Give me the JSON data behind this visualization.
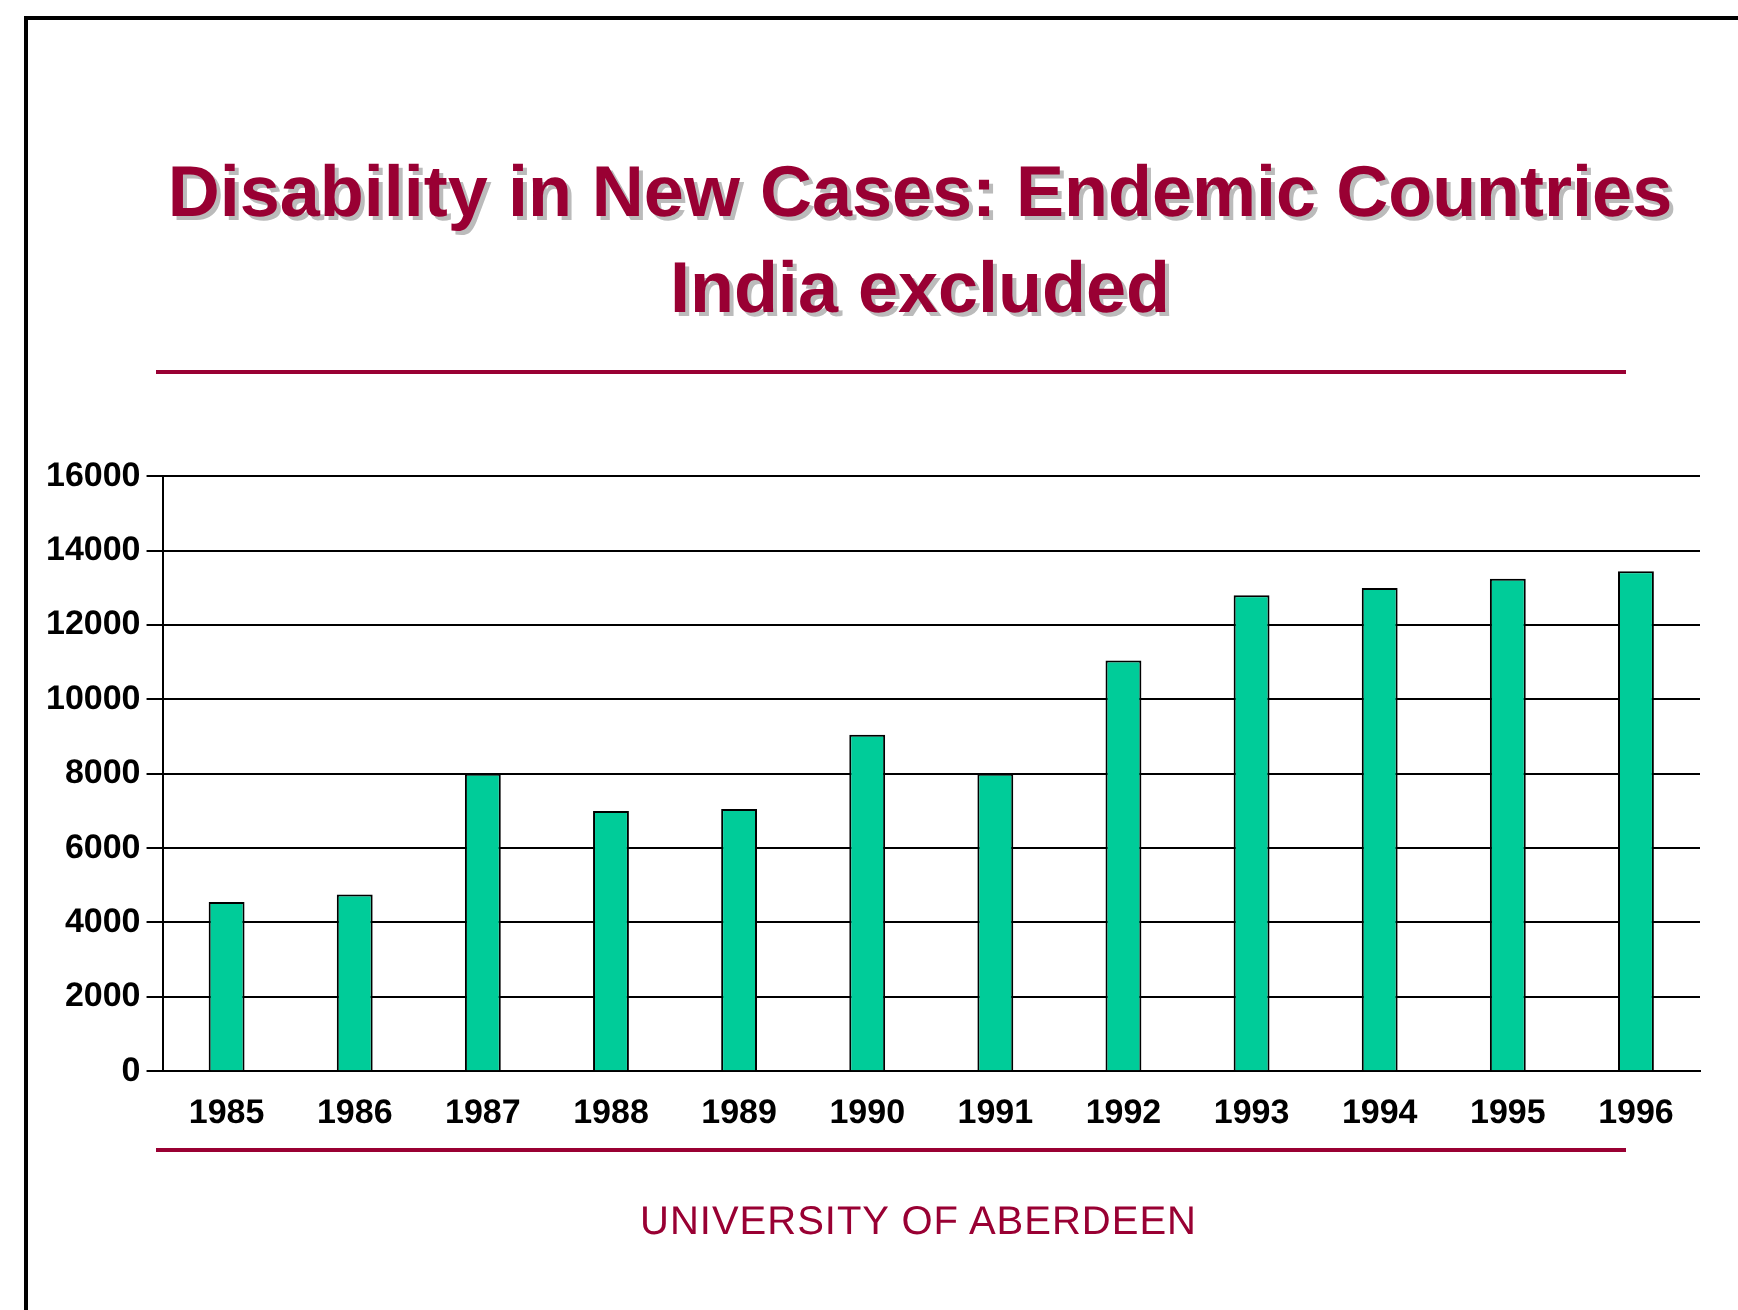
{
  "chart_data": {
    "type": "bar",
    "title": "Disability in New Cases: Endemic Countries India excluded",
    "categories": [
      "1985",
      "1986",
      "1987",
      "1988",
      "1989",
      "1990",
      "1991",
      "1992",
      "1993",
      "1994",
      "1995",
      "1996"
    ],
    "values": [
      4550,
      4750,
      8000,
      7000,
      7050,
      9050,
      8000,
      11050,
      12800,
      13000,
      13250,
      13450
    ],
    "color": "#00cc99",
    "ylim": [
      0,
      16000
    ],
    "yticks": [
      0,
      2000,
      4000,
      6000,
      8000,
      10000,
      12000,
      14000,
      16000
    ],
    "grid": "y",
    "annotations": [
      "UNIVERSITY OF ABERDEEN"
    ]
  }
}
